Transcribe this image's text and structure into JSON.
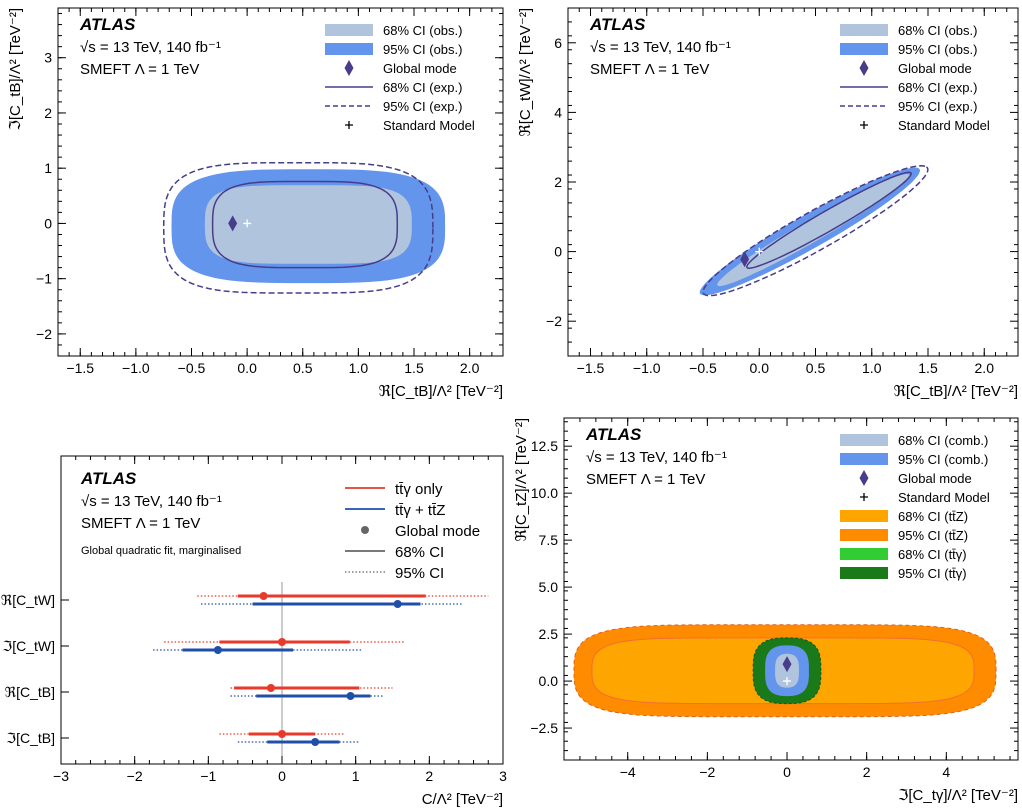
{
  "colors": {
    "obs68": "#b0c4de",
    "obs95": "#6495ed",
    "exp": "#483d8b",
    "ttg_only": "#e8392a",
    "ttg_ttz": "#1f4fa8",
    "ttz68": "#ffa500",
    "ttz95": "#ff8c00",
    "tty68": "#32cd32",
    "tty95": "#1a7a1a",
    "sm": "#ffffff"
  },
  "chart_data": [
    {
      "type": "contour",
      "panel": "top-left",
      "atlas_label": "ATLAS",
      "energy_label": "√s = 13 TeV, 140 fb⁻¹",
      "smeft_label": "SMEFT Λ = 1 TeV",
      "xlabel": "ℜ[C_tB]/Λ² [TeV⁻²]",
      "ylabel": "ℑ[C_tB]/Λ² [TeV⁻²]",
      "xlim": [
        -1.7,
        2.3
      ],
      "ylim": [
        -2.4,
        3.9
      ],
      "xticks": [
        "−1.5",
        "−1.0",
        "−0.5",
        "0.0",
        "0.5",
        "1.0",
        "1.5",
        "2.0"
      ],
      "yticks": [
        "−2",
        "−1",
        "0",
        "1",
        "2",
        "3"
      ],
      "legend": [
        "68% CI (obs.)",
        "95% CI (obs.)",
        "Global mode",
        "68% CI (exp.)",
        "95% CI (exp.)",
        "Standard Model"
      ],
      "global_mode": [
        -0.13,
        0.0
      ],
      "standard_model": [
        0.0,
        0.0
      ],
      "regions": {
        "obs95": {
          "shape": "rounded",
          "cx": 0.55,
          "cy": -0.05,
          "hw": 1.23,
          "hh": 1.03,
          "r": 0.92
        },
        "obs68": {
          "shape": "rounded",
          "cx": 0.55,
          "cy": -0.02,
          "hw": 0.93,
          "hh": 0.71,
          "r": 0.5
        },
        "exp95": {
          "shape": "rounded",
          "cx": 0.46,
          "cy": -0.08,
          "hw": 1.21,
          "hh": 1.18,
          "r": 0.82
        },
        "exp68": {
          "shape": "rounded",
          "cx": 0.52,
          "cy": -0.02,
          "hw": 0.83,
          "hh": 0.78,
          "r": 0.55
        }
      }
    },
    {
      "type": "contour",
      "panel": "top-right",
      "atlas_label": "ATLAS",
      "energy_label": "√s = 13 TeV, 140 fb⁻¹",
      "smeft_label": "SMEFT Λ = 1 TeV",
      "xlabel": "ℜ[C_tB]/Λ² [TeV⁻²]",
      "ylabel": "ℜ[C_tW]/Λ² [TeV⁻²]",
      "xlim": [
        -1.7,
        2.3
      ],
      "ylim": [
        -3.0,
        7.0
      ],
      "xticks": [
        "−1.5",
        "−1.0",
        "−0.5",
        "0.0",
        "0.5",
        "1.0",
        "1.5",
        "2.0"
      ],
      "yticks": [
        "−2",
        "0",
        "2",
        "4",
        "6"
      ],
      "legend": [
        "68% CI (obs.)",
        "95% CI (obs.)",
        "Global mode",
        "68% CI (exp.)",
        "95% CI (exp.)",
        "Standard Model"
      ],
      "global_mode": [
        -0.13,
        -0.22
      ],
      "standard_model": [
        0.0,
        0.0
      ],
      "regions": {
        "obs95": {
          "shape": "ellipse",
          "cx": 0.45,
          "cy": 0.58,
          "along": 1.33,
          "across": 0.48
        },
        "obs68": {
          "shape": "ellipse",
          "cx": 0.48,
          "cy": 0.62,
          "along": 1.17,
          "across": 0.31
        },
        "exp95": {
          "shape": "ellipse",
          "cx": 0.5,
          "cy": 0.6,
          "along": 1.35,
          "across": 0.55
        },
        "exp68": {
          "shape": "ellipse",
          "cx": 0.62,
          "cy": 0.9,
          "along": 1.0,
          "across": 0.28
        }
      }
    },
    {
      "type": "interval",
      "panel": "bottom-left",
      "atlas_label": "ATLAS",
      "energy_label": "√s = 13 TeV, 140 fb⁻¹",
      "smeft_label": "SMEFT Λ = 1 TeV",
      "note": "Global quadratic fit, marginalised",
      "xlabel": "C/Λ² [TeV⁻²]",
      "xlim": [
        -3,
        3
      ],
      "xticks": [
        "−3",
        "−2",
        "−1",
        "0",
        "1",
        "2",
        "3"
      ],
      "categories": [
        "ℜ[C_tW]",
        "ℑ[C_tW]",
        "ℜ[C_tB]",
        "ℑ[C_tB]"
      ],
      "legend": [
        "tt̄γ only",
        "tt̄γ + tt̄Z",
        "Global mode",
        "68% CI",
        "95% CI"
      ],
      "series": [
        {
          "name": "tt̄γ only",
          "mode": [
            -0.25,
            0.0,
            -0.15,
            0.0
          ],
          "ci68": [
            [
              -0.6,
              1.95
            ],
            [
              -0.85,
              0.92
            ],
            [
              -0.65,
              1.05
            ],
            [
              -0.45,
              0.45
            ]
          ],
          "ci95": [
            [
              -1.15,
              2.8
            ],
            [
              -1.6,
              1.65
            ],
            [
              -0.7,
              1.5
            ],
            [
              -0.85,
              0.85
            ]
          ]
        },
        {
          "name": "tt̄γ + tt̄Z",
          "mode": [
            1.57,
            -0.87,
            0.93,
            0.45
          ],
          "ci68": [
            [
              -0.4,
              1.88
            ],
            [
              -1.35,
              0.15
            ],
            [
              -0.35,
              1.2
            ],
            [
              -0.2,
              0.78
            ]
          ],
          "ci95": [
            [
              -1.1,
              2.45
            ],
            [
              -1.75,
              1.1
            ],
            [
              -0.7,
              1.38
            ],
            [
              -0.6,
              1.05
            ]
          ]
        }
      ]
    },
    {
      "type": "contour",
      "panel": "bottom-right",
      "atlas_label": "ATLAS",
      "energy_label": "√s = 13 TeV, 140 fb⁻¹",
      "smeft_label": "SMEFT Λ = 1 TeV",
      "xlabel": "ℑ[C_tγ]/Λ² [TeV⁻²]",
      "ylabel": "ℜ[C_tZ]/Λ² [TeV⁻²]",
      "xlim": [
        -5.6,
        5.8
      ],
      "ylim": [
        -4.2,
        14.0
      ],
      "xticks": [
        "−4",
        "−2",
        "0",
        "2",
        "4"
      ],
      "yticks": [
        "−2.5",
        "0.0",
        "2.5",
        "5.0",
        "7.5",
        "10.0",
        "12.5"
      ],
      "legend": [
        "68% CI (comb.)",
        "95% CI (comb.)",
        "Global mode",
        "Standard Model",
        "68% CI (tt̄Z)",
        "95% CI (tt̄Z)",
        "68% CI (tt̄γ)",
        "95% CI (tt̄γ)"
      ],
      "global_mode": [
        0.0,
        0.9
      ],
      "standard_model": [
        0.0,
        0.0
      ],
      "regions": {
        "ttz95": {
          "shape": "rounded",
          "cx": -0.05,
          "cy": 0.55,
          "hw": 5.3,
          "hh": 2.45,
          "r": 1.9
        },
        "ttz68": {
          "shape": "rounded",
          "cx": -0.1,
          "cy": 0.55,
          "hw": 4.8,
          "hh": 1.75,
          "r": 1.3
        },
        "tty95": {
          "shape": "rounded",
          "cx": 0.0,
          "cy": 0.55,
          "hw": 0.85,
          "hh": 1.75,
          "r": 0.75
        },
        "tty68": {
          "shape": "rounded",
          "cx": 0.0,
          "cy": 0.55,
          "hw": 0.5,
          "hh": 1.1,
          "r": 0.45
        },
        "comb95": {
          "shape": "rounded",
          "cx": 0.0,
          "cy": 0.55,
          "hw": 0.55,
          "hh": 1.35,
          "r": 0.5
        },
        "comb68": {
          "shape": "rounded",
          "cx": 0.0,
          "cy": 0.55,
          "hw": 0.3,
          "hh": 0.9,
          "r": 0.28
        }
      }
    }
  ]
}
